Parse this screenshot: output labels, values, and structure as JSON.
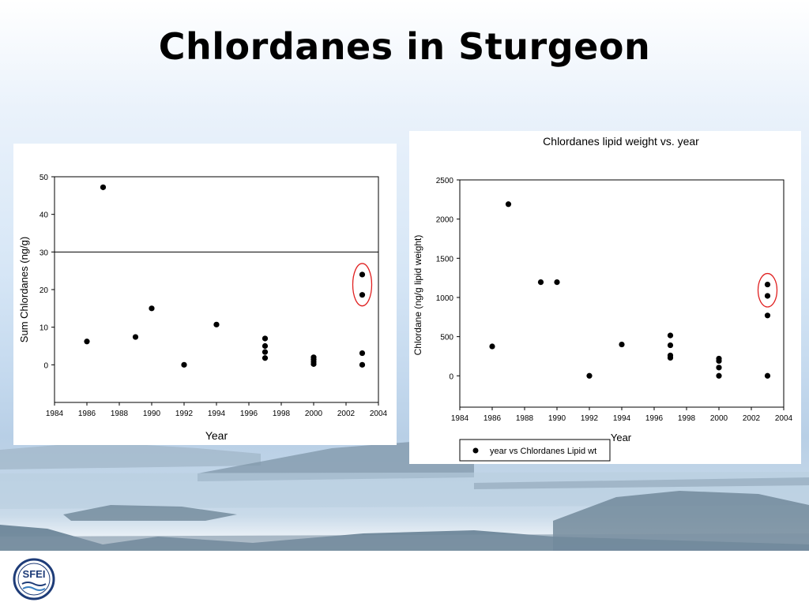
{
  "slide": {
    "title": "Chlordanes in Sturgeon",
    "logo_text": "SFEI"
  },
  "colors": {
    "marker": "#000000",
    "highlight_ellipse": "#e02020",
    "panel_bg": "#ffffff"
  },
  "chart_data": [
    {
      "type": "scatter",
      "title": "",
      "xlabel": "Year",
      "ylabel": "Sum Chlordanes (ng/g)",
      "xlim": [
        1984,
        2004
      ],
      "ylim": [
        -10,
        50
      ],
      "xticks": [
        1984,
        1986,
        1988,
        1990,
        1992,
        1994,
        1996,
        1998,
        2000,
        2002,
        2004
      ],
      "yticks": [
        0,
        10,
        20,
        30,
        40,
        50
      ],
      "grid": false,
      "reference_line_y": 30,
      "legend": "",
      "annotation": "red ellipse around 2003 upper points",
      "x": [
        1986,
        1987,
        1989,
        1990,
        1992,
        1994,
        1997,
        1997,
        1997,
        1997,
        2000,
        2000,
        2000,
        2000,
        2003,
        2003,
        2003,
        2003
      ],
      "y": [
        6.2,
        47.2,
        7.4,
        15,
        0,
        10.7,
        7,
        5,
        3.4,
        1.8,
        2,
        1.4,
        0.8,
        0.2,
        24,
        18.6,
        3.1,
        0
      ]
    },
    {
      "type": "scatter",
      "title": "Chlordanes lipid weight vs. year",
      "xlabel": "Year",
      "ylabel": "Chlordane (ng/g lipid weight)",
      "xlim": [
        1984,
        2004
      ],
      "ylim": [
        -400,
        2500
      ],
      "xticks": [
        1984,
        1986,
        1988,
        1990,
        1992,
        1994,
        1996,
        1998,
        2000,
        2002,
        2004
      ],
      "yticks": [
        0,
        500,
        1000,
        1500,
        2000,
        2500
      ],
      "grid": false,
      "legend": "bottom-left",
      "annotation": "red ellipse around 2003 upper points",
      "series": [
        {
          "name": "year vs Chlordanes Lipid wt",
          "x": [
            1986,
            1987,
            1989,
            1990,
            1992,
            1994,
            1997,
            1997,
            1997,
            1997,
            2000,
            2000,
            2000,
            2000,
            2003,
            2003,
            2003,
            2003
          ],
          "y": [
            375,
            2190,
            1195,
            1195,
            0,
            400,
            515,
            390,
            260,
            230,
            220,
            190,
            105,
            0,
            1165,
            1020,
            770,
            0
          ]
        }
      ]
    }
  ]
}
